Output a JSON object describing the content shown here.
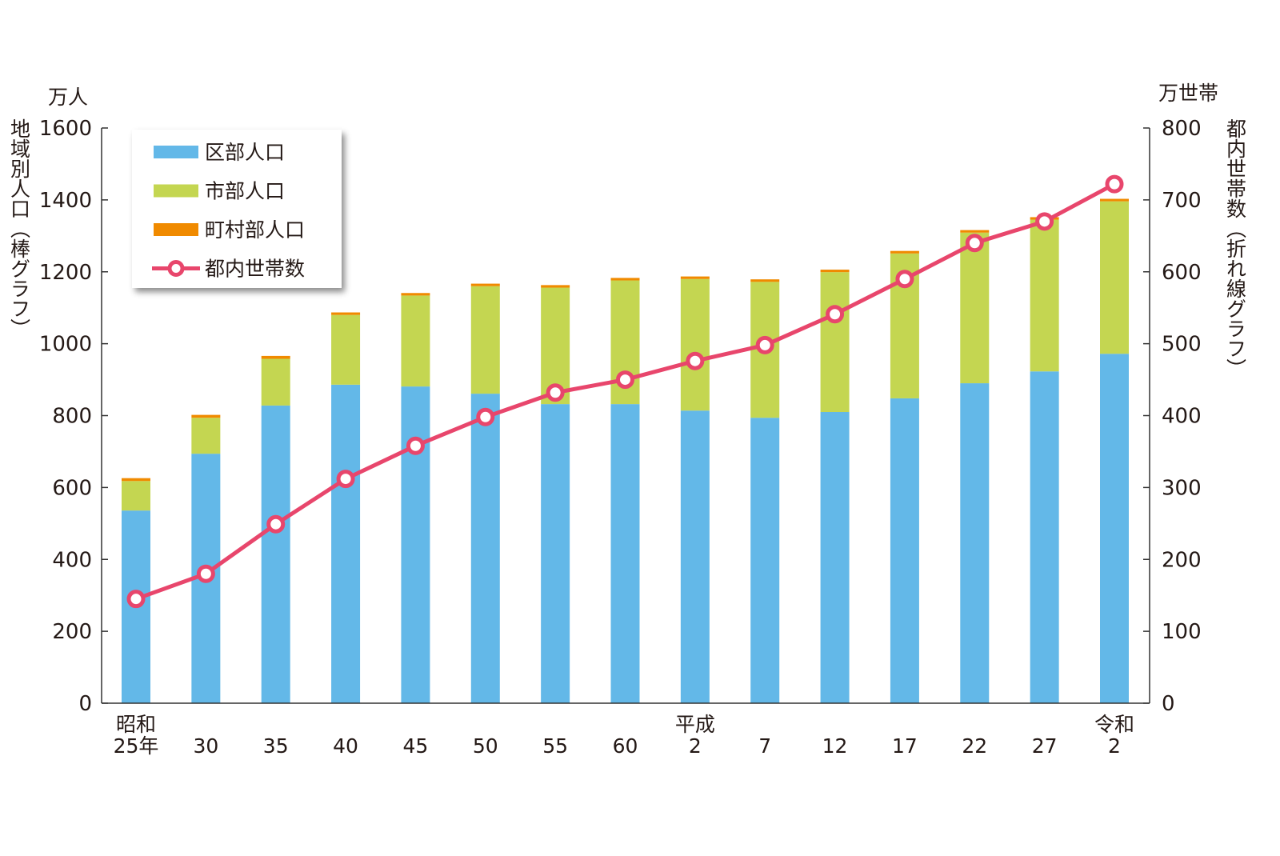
{
  "chart_data": {
    "type": "bar",
    "stacked": true,
    "categories": [
      [
        "昭和",
        "25年"
      ],
      [
        "",
        "30"
      ],
      [
        "",
        "35"
      ],
      [
        "",
        "40"
      ],
      [
        "",
        "45"
      ],
      [
        "",
        "50"
      ],
      [
        "",
        "55"
      ],
      [
        "",
        "60"
      ],
      [
        "平成",
        "2"
      ],
      [
        "",
        "7"
      ],
      [
        "",
        "12"
      ],
      [
        "",
        "17"
      ],
      [
        "",
        "22"
      ],
      [
        "",
        "27"
      ],
      [
        "令和",
        "2"
      ]
    ],
    "left_axis": {
      "unit": "万人",
      "title": "地域別人口（棒グラフ）",
      "range": [
        0,
        1600
      ],
      "ticks": [
        0,
        200,
        400,
        600,
        800,
        1000,
        1200,
        1400,
        1600
      ]
    },
    "right_axis": {
      "unit": "万世帯",
      "title": "都内世帯数（折れ線グラフ）",
      "range": [
        0,
        800
      ],
      "ticks": [
        0,
        100,
        200,
        300,
        400,
        500,
        600,
        700,
        800
      ]
    },
    "series": [
      {
        "name": "区部人口",
        "kind": "bar",
        "axis": "left",
        "color": "#63b8e8",
        "values": [
          536,
          694,
          828,
          886,
          881,
          861,
          832,
          832,
          814,
          794,
          810,
          848,
          890,
          923,
          972
        ]
      },
      {
        "name": "市部人口",
        "kind": "bar",
        "axis": "left",
        "color": "#c4d651",
        "values": [
          82,
          100,
          130,
          194,
          253,
          299,
          324,
          344,
          366,
          378,
          389,
          403,
          419,
          422,
          424
        ]
      },
      {
        "name": "町村部人口",
        "kind": "bar",
        "axis": "left",
        "color": "#f08a00",
        "values": [
          8,
          8,
          8,
          7,
          7,
          7,
          7,
          7,
          7,
          7,
          7,
          7,
          7,
          7,
          7
        ]
      },
      {
        "name": "都内世帯数",
        "kind": "line",
        "axis": "right",
        "color": "#e8466c",
        "values": [
          145,
          180,
          249,
          312,
          358,
          398,
          432,
          450,
          476,
          498,
          541,
          590,
          640,
          670,
          722
        ]
      }
    ],
    "legend": "top-left",
    "grid": false
  }
}
